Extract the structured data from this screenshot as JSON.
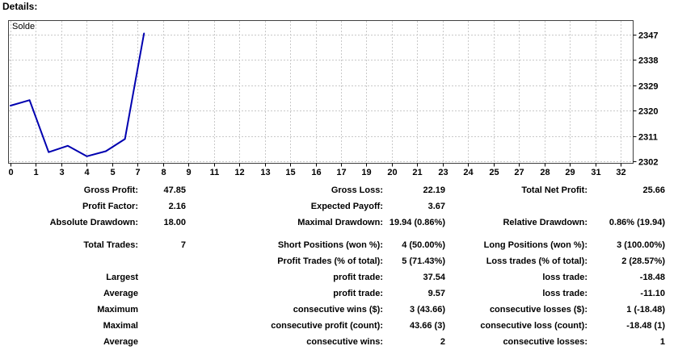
{
  "page": {
    "title": "Details:"
  },
  "chart": {
    "legend": "Solde",
    "line_color": "#0000B0",
    "grid_color": "#C9C9C9",
    "border_color": "#404040",
    "tick_color": "#000000"
  },
  "chart_data": {
    "type": "line",
    "title": "Solde",
    "series": [
      {
        "name": "Solde",
        "x": [
          0,
          1,
          2,
          3,
          4,
          5,
          6,
          7
        ],
        "values": [
          2321.78,
          2323.72,
          2305.24,
          2307.49,
          2303.78,
          2305.58,
          2309.9,
          2347.44
        ]
      }
    ],
    "xlim": [
      0,
      32
    ],
    "ylim": [
      2302,
      2347
    ],
    "x_tick_labels": [
      "0",
      "1",
      "3",
      "4",
      "5",
      "7",
      "8",
      "9",
      "11",
      "12",
      "13",
      "15",
      "16",
      "17",
      "19",
      "20",
      "21",
      "23",
      "24",
      "25",
      "27",
      "28",
      "29",
      "31",
      "32"
    ],
    "y_tick_labels": [
      "2347",
      "2338",
      "2329",
      "2320",
      "2311",
      "2302"
    ],
    "grid": "dashed",
    "legend_position": "top-left"
  },
  "stats": {
    "groups": [
      [
        [
          "Gross Profit:",
          "47.85",
          "Gross Loss:",
          "22.19",
          "Total Net Profit:",
          "25.66"
        ],
        [
          "Profit Factor:",
          "2.16",
          "Expected Payoff:",
          "3.67",
          "",
          ""
        ],
        [
          "Absolute Drawdown:",
          "18.00",
          "Maximal Drawdown:",
          "19.94 (0.86%)",
          "Relative Drawdown:",
          "0.86% (19.94)"
        ]
      ],
      [
        [
          "Total Trades:",
          "7",
          "Short Positions (won %):",
          "4 (50.00%)",
          "Long Positions (won %):",
          "3 (100.00%)"
        ],
        [
          "",
          "",
          "Profit Trades (% of total):",
          "5 (71.43%)",
          "Loss trades (% of total):",
          "2 (28.57%)"
        ],
        [
          "Largest",
          "",
          "profit trade:",
          "37.54",
          "loss trade:",
          "-18.48"
        ],
        [
          "Average",
          "",
          "profit trade:",
          "9.57",
          "loss trade:",
          "-11.10"
        ],
        [
          "Maximum",
          "",
          "consecutive wins ($):",
          "3 (43.66)",
          "consecutive losses ($):",
          "1 (-18.48)"
        ],
        [
          "Maximal",
          "",
          "consecutive profit (count):",
          "43.66 (3)",
          "consecutive loss (count):",
          "-18.48 (1)"
        ],
        [
          "Average",
          "",
          "consecutive wins:",
          "2",
          "consecutive losses:",
          "1"
        ]
      ]
    ]
  }
}
